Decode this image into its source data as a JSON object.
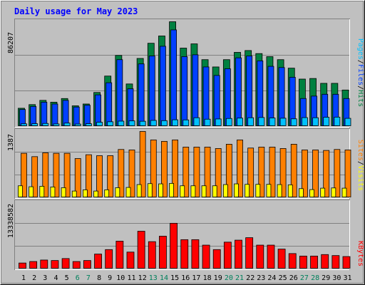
{
  "title": "Daily usage for May 2023",
  "colors": {
    "background": "#c0c0c0",
    "title": "#0000ff",
    "hits": "#008040",
    "files": "#0040ff",
    "pages": "#00c0ff",
    "visits": "#ffff00",
    "sites": "#ff8000",
    "kbytes": "#ff0000",
    "weekend_label": "#00805c",
    "weekday_label": "#000000"
  },
  "chart_data": [
    {
      "type": "bar",
      "panel": "top",
      "max_label": "86207",
      "ylim": [
        0,
        86207
      ],
      "categories": [
        "1",
        "2",
        "3",
        "4",
        "5",
        "6",
        "7",
        "8",
        "9",
        "10",
        "11",
        "12",
        "13",
        "14",
        "15",
        "16",
        "17",
        "18",
        "19",
        "20",
        "21",
        "22",
        "23",
        "24",
        "25",
        "26",
        "27",
        "28",
        "29",
        "30",
        "31"
      ],
      "weekend_days": [
        "6",
        "7",
        "13",
        "14",
        "20",
        "21",
        "27",
        "28"
      ],
      "legend": [
        {
          "label": "Pages",
          "color": "#00c0ff"
        },
        {
          "label": "/",
          "color": "#000000"
        },
        {
          "label": "Files",
          "color": "#0040ff"
        },
        {
          "label": "/",
          "color": "#000000"
        },
        {
          "label": "Hits",
          "color": "#008040"
        }
      ],
      "series": [
        {
          "name": "Hits",
          "values": [
            15000,
            18000,
            21500,
            20000,
            23000,
            17000,
            18500,
            28000,
            41500,
            58500,
            35000,
            56000,
            68500,
            74500,
            86207,
            64500,
            68000,
            55000,
            49000,
            55000,
            61000,
            62500,
            60000,
            57500,
            55000,
            48000,
            39000,
            39500,
            35500,
            35500,
            30000
          ]
        },
        {
          "name": "Files",
          "values": [
            14000,
            16500,
            20000,
            18500,
            21500,
            16000,
            17500,
            26000,
            36000,
            55000,
            31000,
            51500,
            58000,
            66000,
            79500,
            57500,
            59000,
            49000,
            42000,
            47500,
            56500,
            58000,
            54000,
            49500,
            48500,
            40500,
            23000,
            25000,
            26500,
            26500,
            23000
          ]
        },
        {
          "name": "Pages",
          "values": [
            2200,
            2300,
            2500,
            2100,
            2800,
            2000,
            2300,
            3500,
            3900,
            4400,
            4600,
            4300,
            5000,
            4800,
            5500,
            5400,
            7200,
            6000,
            6200,
            6600,
            6900,
            7200,
            7400,
            7000,
            6800,
            6300,
            7300,
            7200,
            7600,
            7700,
            6700
          ]
        }
      ]
    },
    {
      "type": "bar",
      "panel": "middle",
      "max_label": "1387",
      "ylim": [
        0,
        1387
      ],
      "categories": [
        "1",
        "2",
        "3",
        "4",
        "5",
        "6",
        "7",
        "8",
        "9",
        "10",
        "11",
        "12",
        "13",
        "14",
        "15",
        "16",
        "17",
        "18",
        "19",
        "20",
        "21",
        "22",
        "23",
        "24",
        "25",
        "26",
        "27",
        "28",
        "29",
        "30",
        "31"
      ],
      "legend": [
        {
          "label": "Sites",
          "color": "#ff8000"
        },
        {
          "label": "/",
          "color": "#000000"
        },
        {
          "label": "Visits",
          "color": "#ffff00"
        }
      ],
      "series": [
        {
          "name": "Sites",
          "values": [
            930,
            860,
            940,
            930,
            930,
            820,
            900,
            880,
            880,
            1010,
            1000,
            1387,
            1210,
            1180,
            1210,
            1060,
            1060,
            1060,
            1030,
            1120,
            1210,
            1040,
            1060,
            1060,
            1030,
            1120,
            1000,
            1000,
            990,
            1010,
            1000
          ]
        },
        {
          "name": "Visits",
          "values": [
            250,
            230,
            240,
            225,
            210,
            140,
            165,
            140,
            165,
            210,
            215,
            275,
            295,
            290,
            300,
            250,
            250,
            250,
            250,
            275,
            290,
            280,
            280,
            280,
            275,
            270,
            190,
            170,
            200,
            205,
            200
          ]
        }
      ]
    },
    {
      "type": "bar",
      "panel": "bottom",
      "max_label": "13338582",
      "ylim": [
        0,
        13338582
      ],
      "categories": [
        "1",
        "2",
        "3",
        "4",
        "5",
        "6",
        "7",
        "8",
        "9",
        "10",
        "11",
        "12",
        "13",
        "14",
        "15",
        "16",
        "17",
        "18",
        "19",
        "20",
        "21",
        "22",
        "23",
        "24",
        "25",
        "26",
        "27",
        "28",
        "29",
        "30",
        "31"
      ],
      "legend": [
        {
          "label": "KBytes",
          "color": "#ff0000"
        }
      ],
      "series": [
        {
          "name": "KBytes",
          "values": [
            1200000,
            1500000,
            1800000,
            1700000,
            2100000,
            1500000,
            1700000,
            3000000,
            3900000,
            5600000,
            3400000,
            7600000,
            5500000,
            6600000,
            9200000,
            5900000,
            5900000,
            4800000,
            3900000,
            5400000,
            5800000,
            6300000,
            4800000,
            4800000,
            4000000,
            3100000,
            2600000,
            2600000,
            2900000,
            2700000,
            2500000
          ]
        }
      ]
    }
  ]
}
